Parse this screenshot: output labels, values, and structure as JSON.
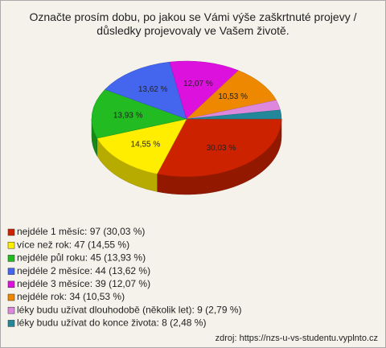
{
  "chart_data": {
    "type": "pie",
    "title": "Označte prosím dobu, po jakou se Vámi výše zaškrtnuté projevy / důsledky projevovaly ve Vašem životě.",
    "categories": [
      "nejdéle 1 měsíc: 97 (30,03 %)",
      "více než rok: 47 (14,55 %)",
      "nejdéle půl roku: 45 (13,93 %)",
      "nejdéle 2 měsíce: 44 (13,62 %)",
      "nejdéle 3 měsíce: 39 (12,07 %)",
      "nejdéle rok: 34 (10,53 %)",
      "léky budu užívat dlouhodobě (několik let): 9 (2,79 %)",
      "léky budu užívat do konce života: 8 (2,48 %)"
    ],
    "values": [
      30.03,
      14.55,
      13.93,
      13.62,
      12.07,
      10.53,
      2.79,
      2.48
    ],
    "value_labels": [
      "30,03 %",
      "14,55 %",
      "13,93 %",
      "13,62 %",
      "12,07 %",
      "10,53 %",
      null,
      null
    ],
    "colors": [
      "#cc2200",
      "#ffee00",
      "#22bb22",
      "#4466ee",
      "#dd11dd",
      "#ee8800",
      "#dd88dd",
      "#228899"
    ],
    "source": "zdroj: https://nzs-u-vs-studentu.vyplnto.cz"
  }
}
